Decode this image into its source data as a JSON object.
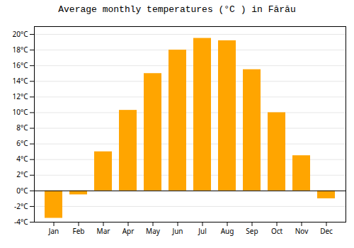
{
  "chart_data": {
    "type": "bar",
    "title": "Average monthly temperatures (°C ) in Fărău",
    "categories": [
      "Jan",
      "Feb",
      "Mar",
      "Apr",
      "May",
      "Jun",
      "Jul",
      "Aug",
      "Sep",
      "Oct",
      "Nov",
      "Dec"
    ],
    "values": [
      -3.5,
      -0.5,
      5.0,
      10.3,
      15.0,
      18.0,
      19.5,
      19.2,
      15.5,
      10.0,
      4.5,
      -1.0
    ],
    "color": "#FFA500",
    "ylim": [
      -4,
      21
    ],
    "yticks": [
      {
        "value": -4,
        "label": "-4°C"
      },
      {
        "value": -2,
        "label": "-2°C"
      },
      {
        "value": 0,
        "label": "0°C"
      },
      {
        "value": 2,
        "label": "2°C"
      },
      {
        "value": 4,
        "label": "4°C"
      },
      {
        "value": 6,
        "label": "6°C"
      },
      {
        "value": 8,
        "label": "8°C"
      },
      {
        "value": 10,
        "label": "10°C"
      },
      {
        "value": 12,
        "label": "12°C"
      },
      {
        "value": 14,
        "label": "14°C"
      },
      {
        "value": 16,
        "label": "16°C"
      },
      {
        "value": 18,
        "label": "18°C"
      },
      {
        "value": 20,
        "label": "20°C"
      }
    ],
    "grid": true
  }
}
